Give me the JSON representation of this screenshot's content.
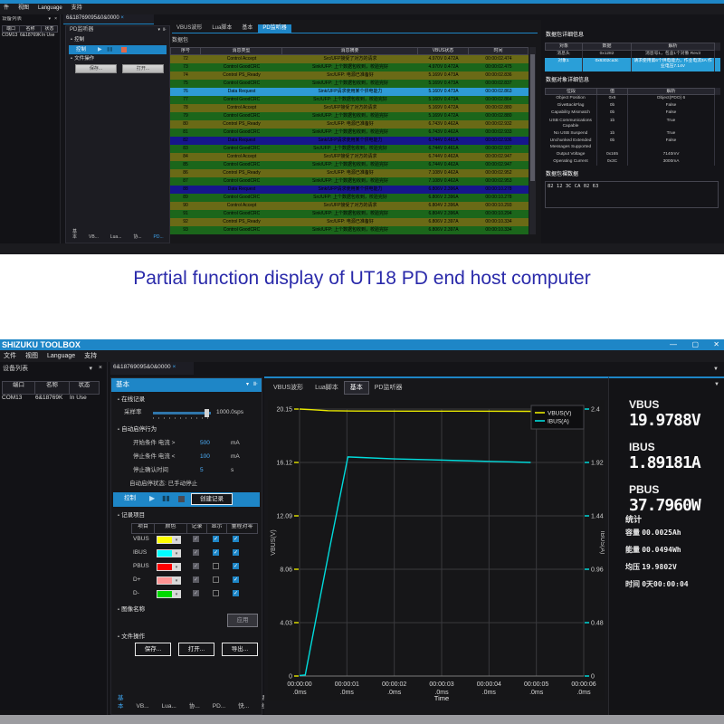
{
  "caption": {
    "text": "Partial function display of UT18 PD end host computer",
    "color": "#2a2aaa"
  },
  "window_glyphs": {
    "minimize": "—",
    "maximize": "▢",
    "close": "✕"
  },
  "accent_color": "#1e86c7",
  "top_shot": {
    "menu": [
      "件",
      "视图",
      "Language",
      "支持"
    ],
    "dock": {
      "title": "设备列表",
      "cols": [
        "端口",
        "名称",
        "状态"
      ],
      "rows": [
        [
          "COM13",
          "6&18769K",
          "In Use"
        ]
      ]
    },
    "doc_tab": "6&18769095&0&0000",
    "pd_panel": {
      "title": "PD监听器",
      "control_section": "控制",
      "control_bar_label": "控制",
      "file_section": "文件操作",
      "buttons": [
        "保存...",
        "打开..."
      ],
      "bottom_tabs": [
        "基本",
        "VB...",
        "Lua...",
        "协...",
        "PD...",
        "快...",
        "系统"
      ],
      "active_tab_index": 4
    },
    "doc_tabs": [
      "VBUS波形",
      "Lua脚本",
      "基本",
      "PD监听器"
    ],
    "active_doc_tab_index": 3,
    "table_title": "数据包",
    "msg_table": {
      "cols": [
        "序号",
        "消息类型",
        "消息摘要",
        "VBUS状态",
        "时间"
      ],
      "rows": [
        {
          "no": "72",
          "type": "Control Accept",
          "summary": "Src/UFP接受了对方的请求",
          "vbus": "4.970V 0.472A",
          "time": "00:00:02.474",
          "style": "olive"
        },
        {
          "no": "73",
          "type": "Control GoodCRC",
          "summary": "Sink/UFP: 上个数据包收到，校验完好",
          "vbus": "4.970V 0.472A",
          "time": "00:00:02.475",
          "style": "green"
        },
        {
          "no": "74",
          "type": "Control PS_Ready",
          "summary": "Src/UFP: 电源已准备好",
          "vbus": "5.169V 0.473A",
          "time": "00:00:02.836",
          "style": "olive"
        },
        {
          "no": "75",
          "type": "Control GoodCRC",
          "summary": "Sink/UFP: 上个数据包收到，校验完好",
          "vbus": "5.169V 0.473A",
          "time": "00:00:02.837",
          "style": "green"
        },
        {
          "no": "76",
          "type": "Data Request",
          "summary": "Sink/UFP请求使用某个供电能力",
          "vbus": "5.160V 0.473A",
          "time": "00:00:02.863",
          "style": "sel"
        },
        {
          "no": "77",
          "type": "Control GoodCRC",
          "summary": "Src/UFP: 上个数据包收到，校验完好",
          "vbus": "5.160V 0.473A",
          "time": "00:00:02.864",
          "style": "green"
        },
        {
          "no": "78",
          "type": "Control Accept",
          "summary": "Src/UFP接受了对方的请求",
          "vbus": "5.169V 0.472A",
          "time": "00:00:02.880",
          "style": "olive"
        },
        {
          "no": "79",
          "type": "Control GoodCRC",
          "summary": "Sink/UFP: 上个数据包收到，校验完好",
          "vbus": "5.169V 0.472A",
          "time": "00:00:02.880",
          "style": "green"
        },
        {
          "no": "80",
          "type": "Control PS_Ready",
          "summary": "Src/UFP: 电源已准备好",
          "vbus": "6.743V 0.462A",
          "time": "00:00:02.932",
          "style": "olive"
        },
        {
          "no": "81",
          "type": "Control GoodCRC",
          "summary": "Sink/UFP: 上个数据包收到，校验完好",
          "vbus": "6.743V 0.462A",
          "time": "00:00:02.933",
          "style": "green"
        },
        {
          "no": "82",
          "type": "Data Request",
          "summary": "Sink/UFP请求使用某个供电能力",
          "vbus": "6.744V 0.461A",
          "time": "00:00:02.936",
          "style": "navy"
        },
        {
          "no": "83",
          "type": "Control GoodCRC",
          "summary": "Src/UFP: 上个数据包收到，校验完好",
          "vbus": "6.744V 0.461A",
          "time": "00:00:02.937",
          "style": "green"
        },
        {
          "no": "84",
          "type": "Control Accept",
          "summary": "Src/UFP接受了对方的请求",
          "vbus": "6.744V 0.462A",
          "time": "00:00:02.947",
          "style": "olive"
        },
        {
          "no": "85",
          "type": "Control GoodCRC",
          "summary": "Sink/UFP: 上个数据包收到，校验完好",
          "vbus": "6.744V 0.462A",
          "time": "00:00:02.947",
          "style": "green"
        },
        {
          "no": "86",
          "type": "Control PS_Ready",
          "summary": "Src/UFP: 电源已准备好",
          "vbus": "7.108V 0.462A",
          "time": "00:00:02.952",
          "style": "olive"
        },
        {
          "no": "87",
          "type": "Control GoodCRC",
          "summary": "Sink/UFP: 上个数据包收到，校验完好",
          "vbus": "7.108V 0.462A",
          "time": "00:00:02.953",
          "style": "green"
        },
        {
          "no": "88",
          "type": "Data Request",
          "summary": "Sink/UFP请求使用某个供电能力",
          "vbus": "6.806V 2.396A",
          "time": "00:00:10.278",
          "style": "navy"
        },
        {
          "no": "89",
          "type": "Control GoodCRC",
          "summary": "Src/UFP: 上个数据包收到，校验完好",
          "vbus": "6.806V 2.396A",
          "time": "00:00:10.278",
          "style": "green"
        },
        {
          "no": "90",
          "type": "Control Accept",
          "summary": "Src/UFP接受了对方的请求",
          "vbus": "6.804V 2.396A",
          "time": "00:00:10.293",
          "style": "olive"
        },
        {
          "no": "91",
          "type": "Control GoodCRC",
          "summary": "Sink/UFP: 上个数据包收到，校验完好",
          "vbus": "6.804V 2.396A",
          "time": "00:00:10.294",
          "style": "green"
        },
        {
          "no": "92",
          "type": "Control PS_Ready",
          "summary": "Src/UFP: 电源已准备好",
          "vbus": "6.806V 2.397A",
          "time": "00:00:10.334",
          "style": "olive"
        },
        {
          "no": "93",
          "type": "Control GoodCRC",
          "summary": "Sink/UFP: 上个数据包收到，校验完好",
          "vbus": "6.806V 2.397A",
          "time": "00:00:10.334",
          "style": "green"
        }
      ]
    },
    "detail_title": "数据包详细信息",
    "detail_table": {
      "cols": [
        "对象",
        "数据",
        "解析"
      ],
      "rows": [
        {
          "c": [
            "消息头",
            "0x1282",
            "消息号1，包含1个对象 Rev3"
          ],
          "sel": false
        },
        {
          "c": [
            "对象1",
            "0x6302ca3c",
            "请求使用第6个供电能力，作业电流3A 作业电压7.14V"
          ],
          "sel": true
        }
      ]
    },
    "object_title": "数据对象详细信息",
    "object_table": {
      "cols": [
        "位段",
        "值",
        "解析"
      ],
      "rows": [
        [
          "Object Position",
          "0x6",
          "Object(PDO) 6"
        ],
        [
          "GiveBackFlag",
          "0b",
          "False"
        ],
        [
          "Capability Mismatch",
          "0b",
          "False"
        ],
        [
          "USB Communications Capable",
          "1b",
          "True"
        ],
        [
          "No USB Suspend",
          "1b",
          "True"
        ],
        [
          "Unchunked Extended Messages Supported",
          "0b",
          "False"
        ],
        [
          "Output Voltage",
          "0x165",
          "7140mV"
        ],
        [
          "Operating Current",
          "0x3C",
          "3000mA"
        ]
      ]
    },
    "raw_title": "数据包裸数据",
    "raw_hex": "82 12 3C CA 02 63"
  },
  "bottom_shot": {
    "window_title": "SHIZUKU TOOLBOX",
    "menu": [
      "文件",
      "视图",
      "Language",
      "支持"
    ],
    "dock": {
      "title": "设备列表",
      "cols": [
        "端口",
        "名称",
        "状态"
      ],
      "rows": [
        [
          "COM13",
          "6&18769K",
          "In Use"
        ]
      ]
    },
    "doc_tab": "6&18769095&0&0000",
    "basic_panel": {
      "title": "基本",
      "online_section": "在线记录",
      "sample_rate_label": "采样率",
      "sample_rate_value": "1000.0sps",
      "auto_section": "自动启停行为",
      "conditions": [
        {
          "label": "开始条件 电流 >",
          "value": "500",
          "unit": "mA"
        },
        {
          "label": "停止条件 电流 <",
          "value": "100",
          "unit": "mA"
        },
        {
          "label": "停止确认时间",
          "value": "5",
          "unit": "s"
        }
      ],
      "status_line": "自动启停状态: 已手动停止",
      "control_label": "控制",
      "create_record_label": "创建记录",
      "record_section": "记录项目",
      "record_table": {
        "cols": [
          "项目",
          "颜色",
          "记录",
          "显示",
          "量程对零"
        ],
        "rows": [
          {
            "name": "VBUS",
            "color": "#ffff00",
            "rec": "gray",
            "show": "on",
            "zero": "on"
          },
          {
            "name": "IBUS",
            "color": "#00ffff",
            "rec": "gray",
            "show": "on",
            "zero": "on"
          },
          {
            "name": "PBUS",
            "color": "#ff0000",
            "rec": "gray",
            "show": "off",
            "zero": "on"
          },
          {
            "name": "D+",
            "color": "#ff9494",
            "rec": "gray",
            "show": "off",
            "zero": "on"
          },
          {
            "name": "D-",
            "color": "#00d800",
            "rec": "gray",
            "show": "off",
            "zero": "on"
          }
        ]
      },
      "image_section": "图像名称",
      "apply_label": "应用",
      "file_section": "文件操作",
      "file_buttons": [
        "保存...",
        "打开...",
        "导出..."
      ],
      "bottom_tabs": [
        "基本",
        "VB...",
        "Lua...",
        "协...",
        "PD...",
        "快...",
        "系统"
      ],
      "active_tab_index": 0
    },
    "doc_tabs": [
      "VBUS波形",
      "Lua脚本",
      "基本",
      "PD监听器"
    ],
    "active_doc_tab_index": 2,
    "values_panel": {
      "readouts": [
        {
          "label": "VBUS",
          "value": "19.9788V"
        },
        {
          "label": "IBUS",
          "value": "1.89181A"
        },
        {
          "label": "PBUS",
          "value": "37.7960W"
        }
      ],
      "stats_title": "统计",
      "stats": [
        {
          "label": "容量",
          "value": "00.0025Ah"
        },
        {
          "label": "能量",
          "value": "00.0494Wh"
        },
        {
          "label": "均压",
          "value": "19.9802V"
        },
        {
          "label": "时间",
          "value": "0天00:00:04"
        }
      ]
    }
  },
  "chart_data": {
    "type": "line",
    "title": "",
    "xlabel": "Time",
    "x_tick_labels": [
      [
        "00:00:00",
        ".0ms"
      ],
      [
        "00:00:01",
        ".0ms"
      ],
      [
        "00:00:02",
        ".0ms"
      ],
      [
        "00:00:03",
        ".0ms"
      ],
      [
        "00:00:04",
        ".0ms"
      ],
      [
        "00:00:05",
        ".0ms"
      ],
      [
        "00:00:06",
        ".0ms"
      ]
    ],
    "x_range_s": [
      0,
      6
    ],
    "grid": true,
    "legend_position": "top-right",
    "left_axis": {
      "label": "VBUS(V)",
      "ticks": [
        "0",
        "4.03",
        "8.06",
        "12.09",
        "16.12",
        "20.15"
      ],
      "max": 20.15,
      "color": "#d9d900"
    },
    "right_axis": {
      "label": "IBUS(A)",
      "ticks": [
        "0",
        "0.48",
        "0.96",
        "1.44",
        "1.92",
        "2.4"
      ],
      "max": 2.4,
      "color": "#00d5d5"
    },
    "legend": [
      {
        "name": "VBUS(V)",
        "color": "#e8e800"
      },
      {
        "name": "IBUS(A)",
        "color": "#00dcdc"
      }
    ],
    "series": [
      {
        "name": "VBUS(V)",
        "axis": "left",
        "color": "#e8e800",
        "points": [
          [
            0,
            20.15
          ],
          [
            0.25,
            20.1
          ],
          [
            0.6,
            20.03
          ],
          [
            1.2,
            20.0
          ],
          [
            2.4,
            19.99
          ],
          [
            3.6,
            19.99
          ],
          [
            4.88,
            19.98
          ]
        ]
      },
      {
        "name": "IBUS(A)",
        "axis": "right",
        "color": "#00dcdc",
        "points": [
          [
            0,
            0.005
          ],
          [
            0.12,
            0.01
          ],
          [
            0.35,
            0.52
          ],
          [
            0.65,
            1.18
          ],
          [
            1.02,
            1.97
          ],
          [
            1.3,
            1.965
          ],
          [
            2.0,
            1.952
          ],
          [
            2.7,
            1.945
          ],
          [
            3.4,
            1.936
          ],
          [
            4.0,
            1.93
          ],
          [
            4.5,
            1.925
          ],
          [
            4.88,
            1.92
          ]
        ]
      }
    ]
  }
}
